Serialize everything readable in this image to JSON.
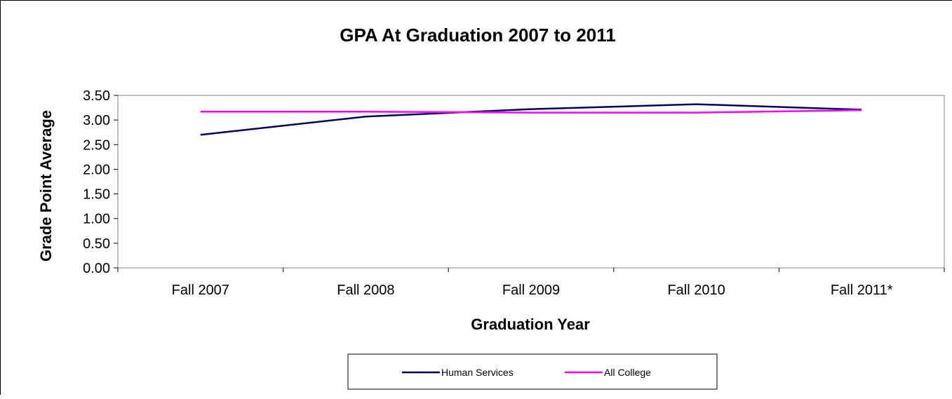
{
  "chart_data": {
    "type": "line",
    "title": "GPA At Graduation 2007 to 2011",
    "xlabel": "Graduation Year",
    "ylabel": "Grade Point Average",
    "categories": [
      "Fall 2007",
      "Fall 2008",
      "Fall 2009",
      "Fall 2010",
      "Fall 2011*"
    ],
    "ylim": [
      0,
      3.5
    ],
    "yticks": [
      "0.00",
      "0.50",
      "1.00",
      "1.50",
      "2.00",
      "2.50",
      "3.00",
      "3.50"
    ],
    "grid": false,
    "legend_position": "bottom",
    "series": [
      {
        "name": "Human Services",
        "color": "#000066",
        "values": [
          2.7,
          3.07,
          3.22,
          3.32,
          3.21
        ]
      },
      {
        "name": "All College",
        "color": "#ff00ff",
        "values": [
          3.17,
          3.17,
          3.15,
          3.15,
          3.2
        ]
      }
    ]
  }
}
